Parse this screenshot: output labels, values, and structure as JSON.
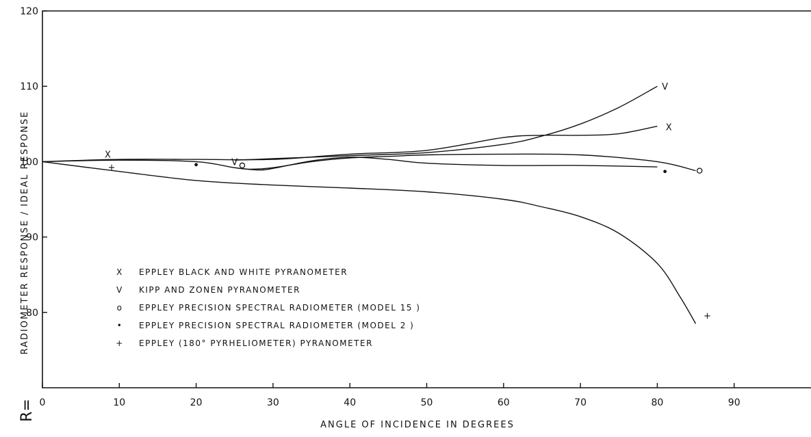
{
  "chart_data": {
    "type": "line",
    "title": "",
    "xlabel": "ANGLE OF INCIDENCE IN DEGREES",
    "ylabel_prefix": "R=",
    "ylabel": "RADIOMETER RESPONSE / IDEAL RESPONSE",
    "xlim": [
      0,
      100
    ],
    "ylim": [
      70,
      120
    ],
    "xticks": [
      "0",
      "10",
      "20",
      "30",
      "40",
      "50",
      "60",
      "70",
      "80",
      "90"
    ],
    "yticks": [
      "80",
      "90",
      "100",
      "110",
      "120"
    ],
    "grid": false,
    "legend_position": "lower-left",
    "legend": [
      {
        "symbol": "X",
        "label": "EPPLEY BLACK AND WHITE PYRANOMETER"
      },
      {
        "symbol": "V",
        "label": "KIPP AND ZONEN PYRANOMETER"
      },
      {
        "symbol": "o",
        "label": "EPPLEY PRECISION SPECTRAL RADIOMETER (MODEL 15 )"
      },
      {
        "symbol": "•",
        "label": "EPPLEY PRECISION SPECTRAL RADIOMETER (MODEL 2 )"
      },
      {
        "symbol": "+",
        "label": "EPPLEY (180° PYRHELIOMETER) PYRANOMETER"
      }
    ],
    "series": [
      {
        "symbol": "X",
        "x": [
          0,
          10,
          20,
          30,
          40,
          50,
          60,
          65,
          70,
          75,
          80
        ],
        "y": [
          100,
          100.3,
          100.3,
          100.3,
          101,
          101.5,
          103.2,
          103.5,
          103.5,
          103.7,
          104.7
        ],
        "markers": [
          {
            "x": 8.5,
            "y": 101
          },
          {
            "x": 81.5,
            "y": 104.6
          }
        ]
      },
      {
        "symbol": "V",
        "x": [
          25,
          30,
          40,
          50,
          60,
          65,
          70,
          75,
          80
        ],
        "y": [
          100.2,
          100.4,
          100.8,
          101.2,
          102.3,
          103.4,
          105,
          107.2,
          110
        ],
        "markers": [
          {
            "x": 25,
            "y": 100
          },
          {
            "x": 81,
            "y": 110
          }
        ]
      },
      {
        "symbol": "o",
        "x": [
          25,
          27,
          30,
          35,
          40,
          45,
          50,
          60,
          70,
          80,
          85
        ],
        "y": [
          99.2,
          99,
          99.2,
          100,
          100.5,
          100.7,
          100.9,
          101,
          100.9,
          100,
          98.8
        ],
        "markers": [
          {
            "x": 26,
            "y": 99.5
          },
          {
            "x": 85.5,
            "y": 98.8
          }
        ]
      },
      {
        "symbol": "•",
        "x": [
          0,
          10,
          20,
          25,
          28,
          30,
          35,
          40,
          45,
          50,
          60,
          70,
          80
        ],
        "y": [
          100,
          100.2,
          100,
          99.2,
          98.9,
          99.1,
          100.1,
          100.6,
          100.3,
          99.8,
          99.5,
          99.5,
          99.3
        ],
        "markers": [
          {
            "x": 20,
            "y": 99.6
          },
          {
            "x": 81,
            "y": 98.7
          }
        ]
      },
      {
        "symbol": "+",
        "x": [
          0,
          10,
          20,
          30,
          40,
          50,
          60,
          65,
          70,
          75,
          80,
          83,
          85
        ],
        "y": [
          100,
          98.7,
          97.5,
          96.9,
          96.5,
          96,
          95,
          94,
          92.7,
          90.5,
          86.5,
          82,
          78.5
        ],
        "markers": [
          {
            "x": 9,
            "y": 99.3
          },
          {
            "x": 86.5,
            "y": 79.6
          }
        ]
      }
    ]
  }
}
